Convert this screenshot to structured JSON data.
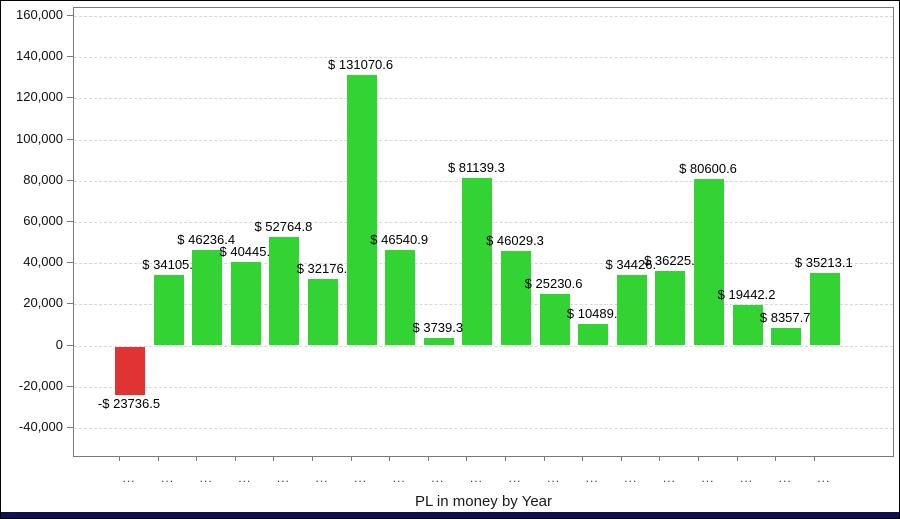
{
  "window": {
    "bottom_strip_color": "#11114e"
  },
  "chart_data": {
    "type": "bar",
    "title": "",
    "xlabel": "PL in money by Year",
    "ylabel": "",
    "ylim": [
      -40000,
      160000
    ],
    "grid": "horizontal-dashed",
    "legend": "none",
    "colors": {
      "positive": "#32d332",
      "negative": "#e03434"
    },
    "y_ticks": [
      {
        "value": 160000,
        "label": "160,000"
      },
      {
        "value": 140000,
        "label": "140,000"
      },
      {
        "value": 120000,
        "label": "120,000"
      },
      {
        "value": 100000,
        "label": "100,000"
      },
      {
        "value": 80000,
        "label": "80,000"
      },
      {
        "value": 60000,
        "label": "60,000"
      },
      {
        "value": 40000,
        "label": "40,000"
      },
      {
        "value": 20000,
        "label": "20,000"
      },
      {
        "value": 0,
        "label": "0"
      },
      {
        "value": -20000,
        "label": "-20,000"
      },
      {
        "value": -40000,
        "label": "-40,000"
      }
    ],
    "categories": [
      "...",
      "...",
      "...",
      "...",
      "...",
      "...",
      "...",
      "...",
      "...",
      "...",
      "...",
      "...",
      "...",
      "...",
      "...",
      "...",
      "...",
      "...",
      "..."
    ],
    "values": [
      -23736.5,
      34105,
      46236.4,
      40445,
      52764.8,
      32176,
      131070.6,
      46540.9,
      3739.3,
      81139.3,
      46029.3,
      25230.6,
      10489,
      34426,
      36225,
      80600.6,
      19442.2,
      8357.7,
      35213.1
    ],
    "bar_labels": [
      "-$ 23736.5",
      "$ 34105.",
      "$ 46236.4",
      "$ 40445.",
      "$ 52764.8",
      "$ 32176.",
      "$ 131070.6",
      "$ 46540.9",
      "$ 3739.3",
      "$ 81139.3",
      "$ 46029.3",
      "$ 25230.6",
      "$ 10489.",
      "$ 34426.",
      "$ 36225.",
      "$ 80600.6",
      "$ 19442.2",
      "$ 8357.7",
      "$ 35213.1"
    ]
  }
}
